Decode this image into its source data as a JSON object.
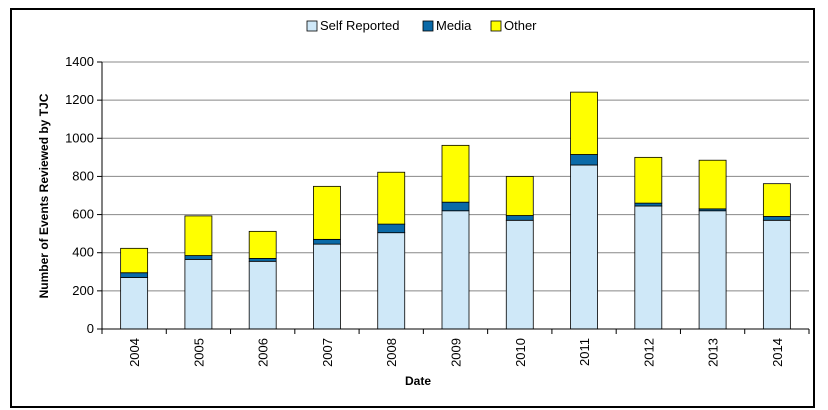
{
  "chart_data": {
    "type": "bar",
    "stacked": true,
    "categories": [
      "2004",
      "2005",
      "2006",
      "2007",
      "2008",
      "2009",
      "2010",
      "2011",
      "2012",
      "2013",
      "2014"
    ],
    "series": [
      {
        "name": "Self Reported",
        "color": "#cfe8f8",
        "values": [
          270,
          365,
          355,
          445,
          505,
          620,
          570,
          860,
          645,
          620,
          570
        ]
      },
      {
        "name": "Media",
        "color": "#0a6aa8",
        "values": [
          25,
          20,
          15,
          25,
          45,
          45,
          25,
          55,
          15,
          10,
          20
        ]
      },
      {
        "name": "Other",
        "color": "#ffff00",
        "values": [
          128,
          208,
          142,
          278,
          272,
          298,
          205,
          327,
          240,
          255,
          172
        ]
      }
    ],
    "title": "",
    "xlabel": "Date",
    "ylabel": "Number of Events Reviewed by TJC",
    "ylim": [
      0,
      1400
    ],
    "yticks": [
      "0",
      "200",
      "400",
      "600",
      "800",
      "1000",
      "1200",
      "1400"
    ],
    "grid": true,
    "legend_position": "top-center"
  }
}
